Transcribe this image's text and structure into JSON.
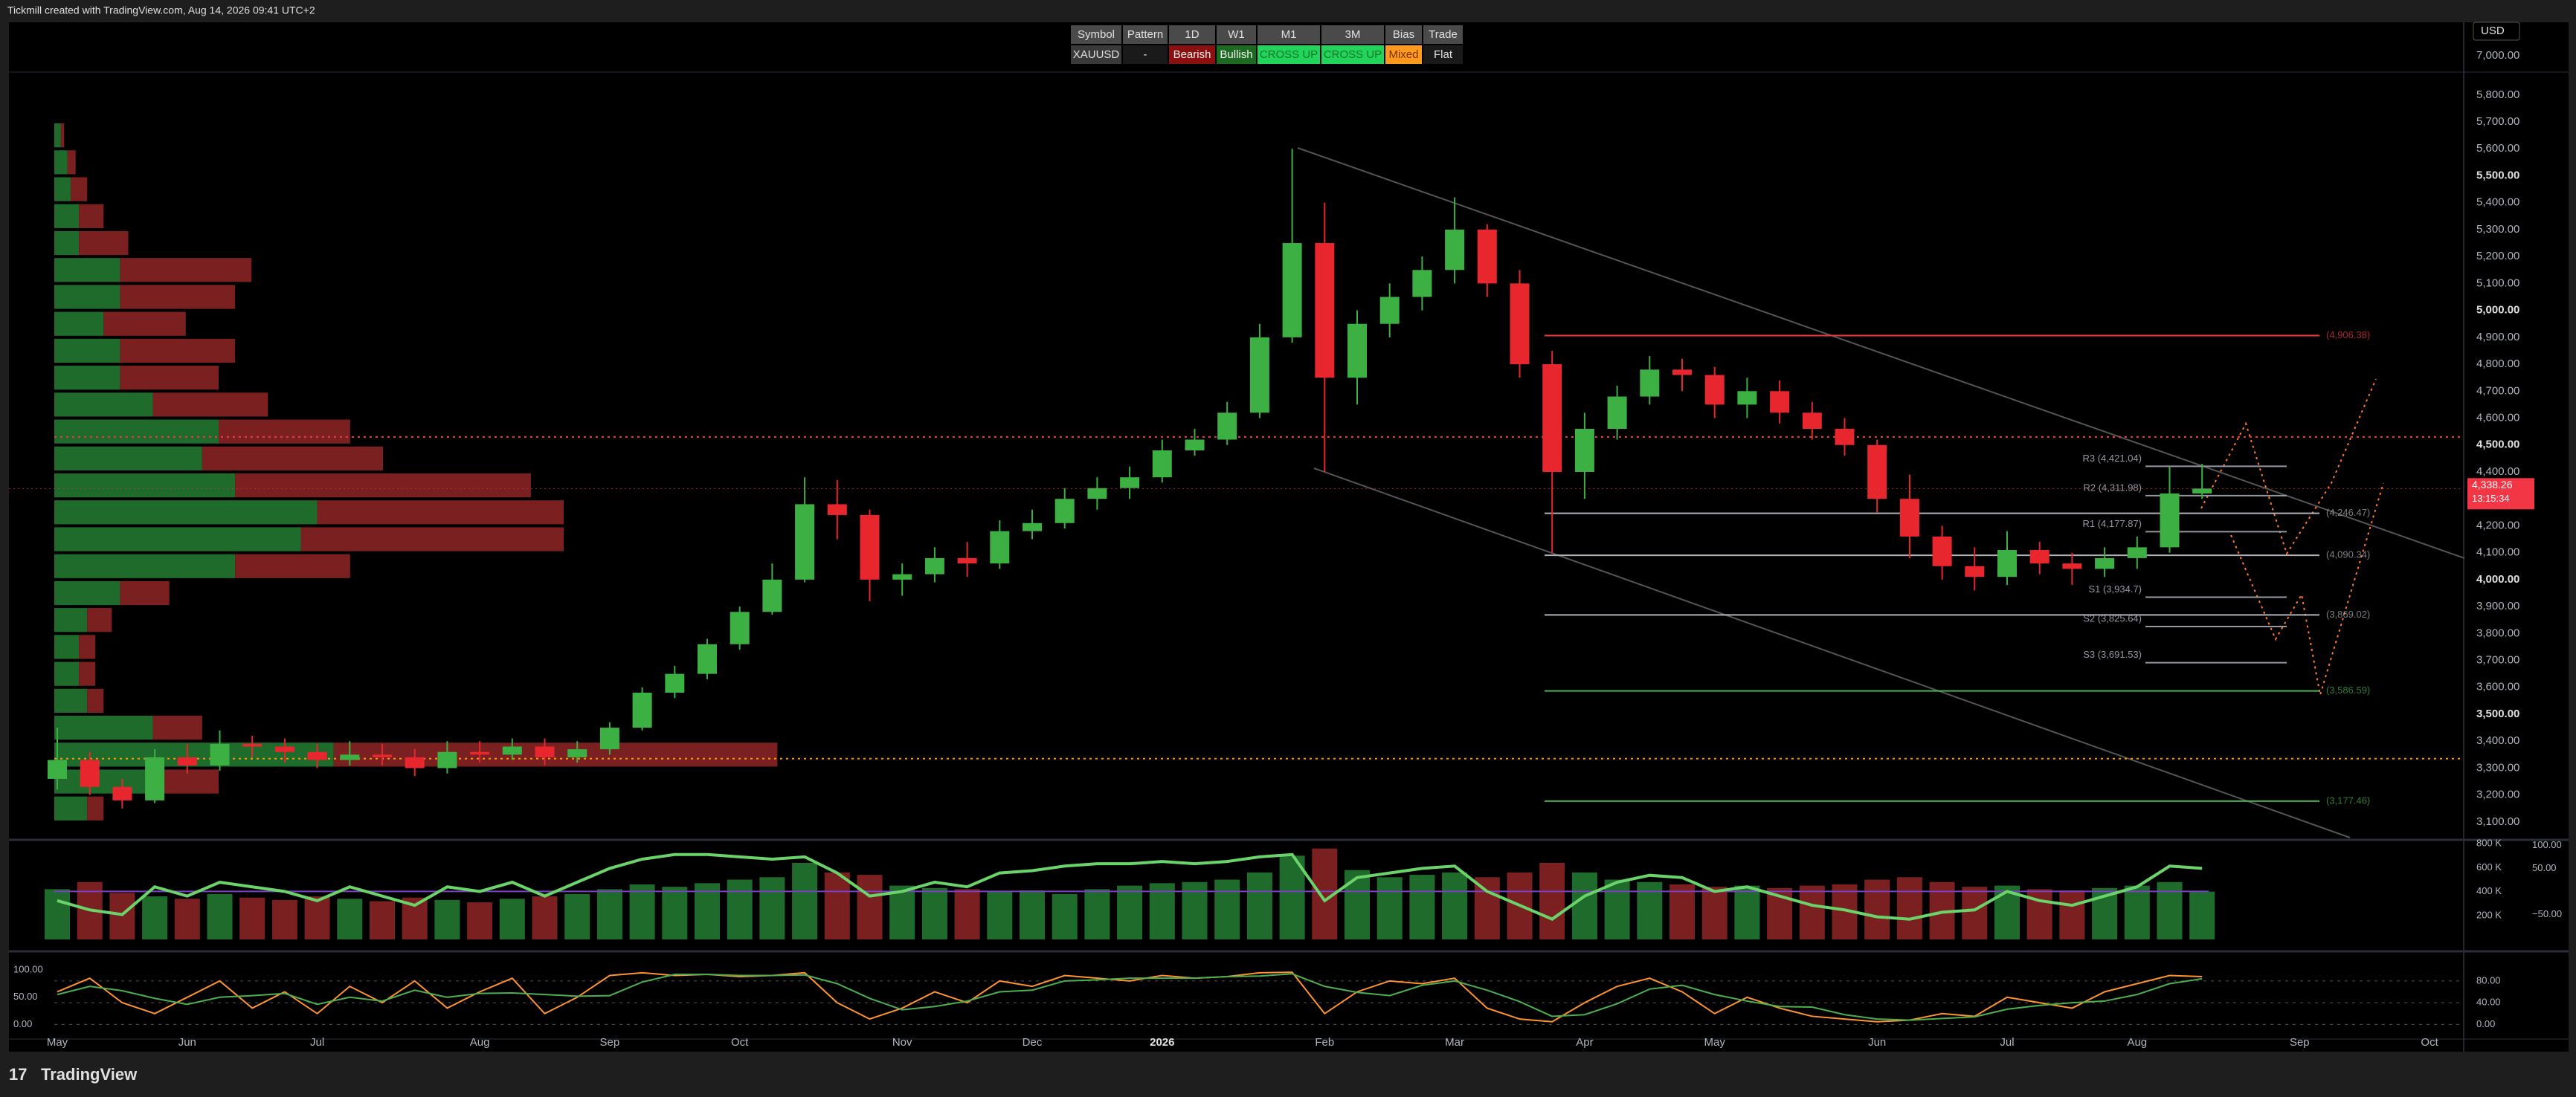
{
  "header": {
    "title": "Tickmill created with TradingView.com, Aug 14, 2026 09:41 UTC+2",
    "currency": "USD",
    "top_label": "7,000.00"
  },
  "table": {
    "rows": [
      [
        "Symbol",
        "Pattern",
        "1D",
        "W1",
        "M1",
        "3M",
        "Bias",
        "Trade"
      ],
      [
        "XAUUSD",
        "-",
        "Bearish",
        "Bullish",
        "CROSS UP",
        "CROSS UP",
        "Mixed",
        "Flat"
      ]
    ],
    "backgrounds": [
      [
        "#4a4a4a",
        "#4a4a4a",
        "#4a4a4a",
        "#4a4a4a",
        "#4a4a4a",
        "#4a4a4a",
        "#4a4a4a",
        "#4a4a4a"
      ],
      [
        "#3a3a3a",
        "#1a1a1a",
        "#8b1010",
        "#1d6b22",
        "#22d45a",
        "#22d45a",
        "#ff9a1f",
        "#1a1a1a"
      ]
    ],
    "text_colors": [
      [
        "#e0e0e0",
        "#e0e0e0",
        "#e0e0e0",
        "#e0e0e0",
        "#e0e0e0",
        "#e0e0e0",
        "#e0e0e0",
        "#e0e0e0"
      ],
      [
        "#e0e0e0",
        "#e0e0e0",
        "#f0f0f0",
        "#f0f0f0",
        "#0f7a2a",
        "#0f7a2a",
        "#7a3000",
        "#e0e0e0"
      ]
    ]
  },
  "chart_data": [
    {
      "type": "candlestick",
      "grid": false,
      "up_color": "#3cb043",
      "down_color": "#e8262d",
      "categories": [
        "May",
        null,
        null,
        null,
        "Jun",
        null,
        null,
        null,
        "Jul",
        null,
        null,
        null,
        null,
        "Aug",
        null,
        null,
        null,
        "Sep",
        null,
        null,
        null,
        "Oct",
        null,
        null,
        null,
        null,
        "Nov",
        null,
        null,
        null,
        "Dec",
        null,
        null,
        null,
        "2026",
        null,
        null,
        null,
        null,
        "Feb",
        null,
        null,
        null,
        "Mar",
        null,
        null,
        null,
        "Apr",
        null,
        null,
        null,
        "May",
        null,
        null,
        null,
        null,
        "Jun",
        null,
        null,
        null,
        "Jul",
        null,
        null,
        null,
        "Aug",
        null,
        null,
        null,
        null,
        "Sep",
        null,
        null,
        null,
        "Oct",
        null
      ],
      "open": [
        3260,
        3330,
        3230,
        3180,
        3340,
        3310,
        3390,
        3380,
        3360,
        3330,
        3350,
        3340,
        3300,
        3360,
        3350,
        3380,
        3340,
        3370,
        3450,
        3580,
        3650,
        3760,
        3880,
        4000,
        4280,
        4240,
        4000,
        4020,
        4080,
        4060,
        4180,
        4210,
        4300,
        4340,
        4380,
        4480,
        4520,
        4620,
        4900,
        5250,
        4750,
        4950,
        5050,
        5150,
        5300,
        5100,
        4800,
        4400,
        4560,
        4680,
        4780,
        4760,
        4650,
        4700,
        4620,
        4560,
        4500,
        4300,
        4160,
        4050,
        4010,
        4110,
        4060,
        4040,
        4080,
        4120,
        4320,
        null,
        null,
        null,
        null,
        null,
        null,
        null,
        null
      ],
      "high": [
        3450,
        3360,
        3260,
        3370,
        3390,
        3440,
        3420,
        3410,
        3390,
        3400,
        3390,
        3370,
        3400,
        3400,
        3410,
        3410,
        3400,
        3470,
        3600,
        3680,
        3780,
        3900,
        4060,
        4380,
        4370,
        4260,
        4060,
        4120,
        4140,
        4220,
        4260,
        4340,
        4380,
        4420,
        4520,
        4560,
        4660,
        4950,
        5600,
        5400,
        5000,
        5100,
        5200,
        5420,
        5320,
        5150,
        4850,
        4620,
        4720,
        4830,
        4820,
        4790,
        4750,
        4740,
        4660,
        4600,
        4520,
        4390,
        4200,
        4120,
        4180,
        4140,
        4100,
        4120,
        4160,
        4420,
        4430,
        null,
        null,
        null,
        null,
        null,
        null,
        null,
        null
      ],
      "low": [
        3220,
        3200,
        3150,
        3170,
        3280,
        3290,
        3340,
        3320,
        3300,
        3310,
        3310,
        3270,
        3280,
        3320,
        3330,
        3310,
        3320,
        3350,
        3440,
        3560,
        3630,
        3740,
        3870,
        3990,
        4150,
        3920,
        3940,
        3990,
        4010,
        4040,
        4150,
        4190,
        4260,
        4300,
        4360,
        4460,
        4500,
        4600,
        4880,
        4400,
        4650,
        4900,
        5000,
        5100,
        5050,
        4750,
        4100,
        4300,
        4520,
        4650,
        4700,
        4600,
        4600,
        4580,
        4520,
        4460,
        4250,
        4080,
        4000,
        3960,
        3980,
        4020,
        3980,
        4010,
        4040,
        4100,
        4300,
        null,
        null,
        null,
        null,
        null,
        null,
        null,
        null
      ],
      "close": [
        3330,
        3230,
        3180,
        3340,
        3310,
        3390,
        3380,
        3360,
        3330,
        3350,
        3340,
        3300,
        3360,
        3350,
        3380,
        3340,
        3370,
        3450,
        3580,
        3650,
        3760,
        3880,
        4000,
        4280,
        4240,
        4000,
        4020,
        4080,
        4060,
        4180,
        4210,
        4300,
        4340,
        4380,
        4480,
        4520,
        4620,
        4900,
        5250,
        4750,
        4950,
        5050,
        5150,
        5300,
        5100,
        4800,
        4400,
        4560,
        4680,
        4780,
        4760,
        4650,
        4700,
        4620,
        4560,
        4500,
        4300,
        4160,
        4050,
        4010,
        4110,
        4060,
        4040,
        4080,
        4120,
        4320,
        4338.26,
        null,
        null,
        null,
        null,
        null,
        null,
        null,
        null
      ],
      "ylim": [
        3039,
        5885
      ],
      "yticks": [
        {
          "value": 3100,
          "label": "3,100.00"
        },
        {
          "value": 3200,
          "label": "3,200.00"
        },
        {
          "value": 3300,
          "label": "3,300.00"
        },
        {
          "value": 3400,
          "label": "3,400.00"
        },
        {
          "value": 3500,
          "label": "3,500.00"
        },
        {
          "value": 3600,
          "label": "3,600.00"
        },
        {
          "value": 3700,
          "label": "3,700.00"
        },
        {
          "value": 3800,
          "label": "3,800.00"
        },
        {
          "value": 3900,
          "label": "3,900.00"
        },
        {
          "value": 4000,
          "label": "4,000.00"
        },
        {
          "value": 4100,
          "label": "4,100.00"
        },
        {
          "value": 4200,
          "label": "4,200.00"
        },
        {
          "value": 4300,
          "label": "4,300.00"
        },
        {
          "value": 4400,
          "label": "4,400.00"
        },
        {
          "value": 4500,
          "label": "4,500.00"
        },
        {
          "value": 4600,
          "label": "4,600.00"
        },
        {
          "value": 4700,
          "label": "4,700.00"
        },
        {
          "value": 4800,
          "label": "4,800.00"
        },
        {
          "value": 4900,
          "label": "4,900.00"
        },
        {
          "value": 5000,
          "label": "5,000.00"
        },
        {
          "value": 5100,
          "label": "5,100.00"
        },
        {
          "value": 5200,
          "label": "5,200.00"
        },
        {
          "value": 5300,
          "label": "5,300.00"
        },
        {
          "value": 5400,
          "label": "5,400.00"
        },
        {
          "value": 5500,
          "label": "5,500.00"
        },
        {
          "value": 5600,
          "label": "5,600.00"
        },
        {
          "value": 5700,
          "label": "5,700.00"
        },
        {
          "value": 5800,
          "label": "5,800.00"
        }
      ],
      "last_price": {
        "value": 4338.26,
        "label": "4,338.26",
        "countdown": "13:15:34",
        "color": "#f23645"
      },
      "pivots": [
        {
          "label": "R3 (4,421.04)",
          "value": 4421.04
        },
        {
          "label": "R2 (4,311.98)",
          "value": 4311.98
        },
        {
          "label": "R1 (4,177.87)",
          "value": 4177.87
        },
        {
          "label": "S1 (3,934.7)",
          "value": 3934.7
        },
        {
          "label": "S2 (3,825.64)",
          "value": 3825.64
        },
        {
          "label": "S3 (3,691.53)",
          "value": 3691.53
        }
      ],
      "zones": [
        {
          "label": "(4,906.38)",
          "value": 4906.38,
          "color": "#f23645"
        },
        {
          "label": "(4,246.47)",
          "value": 4246.47,
          "color": "#b0b3ba"
        },
        {
          "label": "(4,090.34)",
          "value": 4090.34,
          "color": "#b0b3ba"
        },
        {
          "label": "(3,869.02)",
          "value": 3869.02,
          "color": "#b0b3ba"
        },
        {
          "label": "(3,586.59)",
          "value": 3586.59,
          "color": "#4caf50"
        },
        {
          "label": "(3,177.46)",
          "value": 3177.46,
          "color": "#4caf50"
        }
      ],
      "profile_levels": [
        {
          "value": 4530,
          "color": "#f23645"
        },
        {
          "value": 3335,
          "color": "#ff9800"
        }
      ],
      "volume_profile": {
        "edges": [
          3100,
          3200,
          3300,
          3400,
          3500,
          3600,
          3700,
          3800,
          3900,
          4000,
          4100,
          4200,
          4300,
          4400,
          4500,
          4600,
          4700,
          4800,
          4900,
          5000,
          5100,
          5200,
          5300,
          5400,
          5500,
          5600,
          5700
        ],
        "up": [
          20,
          60,
          170,
          60,
          20,
          15,
          15,
          20,
          40,
          110,
          150,
          160,
          110,
          90,
          100,
          60,
          40,
          40,
          30,
          40,
          40,
          15,
          15,
          10,
          8,
          4
        ],
        "down": [
          10,
          40,
          270,
          30,
          10,
          10,
          10,
          15,
          30,
          70,
          160,
          150,
          180,
          110,
          80,
          70,
          60,
          70,
          50,
          70,
          80,
          30,
          15,
          10,
          5,
          2
        ],
        "xlim": [
          0,
          500
        ],
        "up_color": "#1f6b2c",
        "down_color": "#7a2020"
      }
    },
    {
      "type": "bar",
      "values": [
        420000,
        480000,
        390000,
        360000,
        340000,
        380000,
        350000,
        330000,
        360000,
        340000,
        320000,
        350000,
        330000,
        310000,
        340000,
        360000,
        380000,
        420000,
        460000,
        440000,
        470000,
        500000,
        520000,
        640000,
        560000,
        540000,
        450000,
        430000,
        420000,
        400000,
        410000,
        380000,
        420000,
        450000,
        470000,
        480000,
        500000,
        560000,
        700000,
        760000,
        580000,
        520000,
        540000,
        560000,
        520000,
        560000,
        640000,
        560000,
        500000,
        480000,
        460000,
        440000,
        450000,
        430000,
        450000,
        460000,
        500000,
        520000,
        480000,
        440000,
        450000,
        420000,
        410000,
        430000,
        450000,
        480000,
        400000,
        null,
        null,
        null,
        null,
        null,
        null,
        null,
        null
      ],
      "ylim": [
        0,
        814000
      ],
      "yticks": [
        {
          "value": 200000,
          "label": "200 K"
        },
        {
          "value": 400000,
          "label": "400 K"
        },
        {
          "value": 600000,
          "label": "600 K"
        },
        {
          "value": 800000,
          "label": "800 K"
        }
      ],
      "line": {
        "axis": "y2",
        "color": "#6ad46a",
        "values": [
          -20,
          -40,
          -50,
          10,
          -10,
          20,
          10,
          0,
          -20,
          10,
          -10,
          -30,
          10,
          0,
          20,
          -10,
          20,
          50,
          70,
          80,
          80,
          75,
          70,
          75,
          40,
          -10,
          0,
          20,
          10,
          40,
          45,
          55,
          60,
          60,
          65,
          60,
          65,
          75,
          80,
          -20,
          30,
          40,
          50,
          55,
          0,
          -30,
          -60,
          -10,
          20,
          35,
          30,
          0,
          10,
          -10,
          -30,
          -40,
          -55,
          -60,
          -45,
          -40,
          0,
          -20,
          -30,
          -10,
          10,
          55,
          50,
          null,
          null,
          null,
          null,
          null,
          null,
          null,
          null
        ]
      },
      "y2lim": [
        -104,
        107
      ],
      "y2ticks": [
        {
          "value": 100,
          "label": "100.00"
        },
        {
          "value": 50,
          "label": "50.00"
        },
        {
          "value": -50,
          "label": "−50.00"
        }
      ]
    },
    {
      "type": "line",
      "series": [
        {
          "color": "#ff9330",
          "values": [
            60,
            85,
            40,
            20,
            50,
            80,
            30,
            60,
            20,
            70,
            40,
            80,
            30,
            60,
            85,
            20,
            50,
            90,
            95,
            90,
            92,
            88,
            90,
            95,
            40,
            10,
            30,
            60,
            40,
            80,
            70,
            90,
            85,
            80,
            90,
            85,
            88,
            95,
            96,
            20,
            60,
            80,
            75,
            85,
            30,
            10,
            5,
            40,
            70,
            85,
            60,
            20,
            50,
            30,
            15,
            10,
            5,
            8,
            20,
            15,
            50,
            40,
            30,
            60,
            75,
            90,
            88,
            null,
            null,
            null,
            null,
            null,
            null,
            null,
            null
          ]
        },
        {
          "color": "#4caf50",
          "values": [
            55,
            70,
            62,
            48,
            37,
            50,
            53,
            57,
            37,
            50,
            43,
            63,
            50,
            57,
            58,
            55,
            52,
            53,
            78,
            92,
            92,
            90,
            90,
            91,
            75,
            48,
            27,
            33,
            43,
            60,
            63,
            80,
            82,
            85,
            85,
            85,
            88,
            89,
            93,
            70,
            59,
            53,
            72,
            80,
            63,
            42,
            15,
            18,
            38,
            65,
            72,
            55,
            43,
            33,
            32,
            18,
            10,
            8,
            11,
            14,
            28,
            35,
            40,
            43,
            55,
            75,
            84,
            null,
            null,
            null,
            null,
            null,
            null,
            null,
            null
          ]
        }
      ],
      "ylim": [
        -24,
        118
      ],
      "yticks": [
        {
          "value": 0,
          "label": "0.00"
        },
        {
          "value": 50,
          "label": "50.00"
        },
        {
          "value": 100,
          "label": "100.00"
        }
      ],
      "y2lim": [
        -24,
        118
      ],
      "y2ticks": [
        {
          "value": 0,
          "label": "0.00"
        },
        {
          "value": 40,
          "label": "40.00"
        },
        {
          "value": 80,
          "label": "80.00"
        }
      ]
    }
  ],
  "footer": {
    "brand": "TradingView"
  }
}
